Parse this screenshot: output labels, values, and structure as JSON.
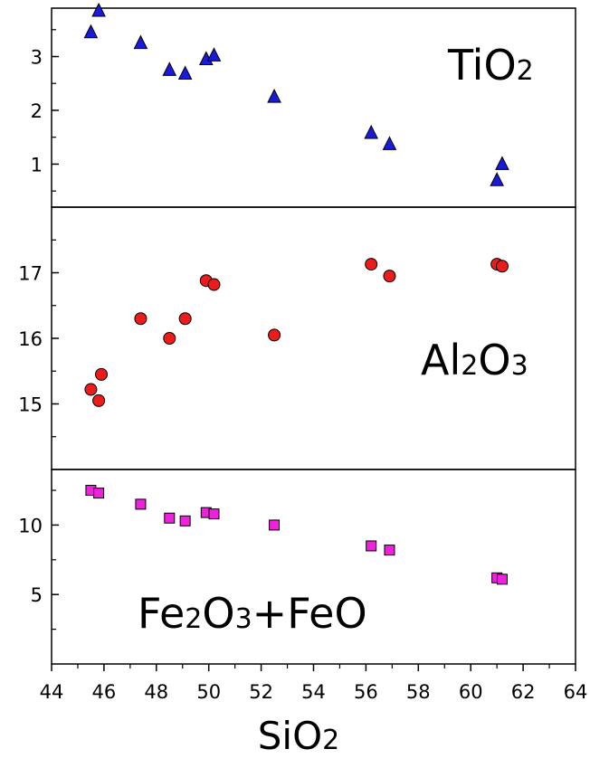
{
  "chart_data": {
    "type": "scatter",
    "x_axis": {
      "label": "SiO",
      "label_subscript": "2",
      "range": [
        44,
        64
      ],
      "ticks": [
        44,
        46,
        48,
        50,
        52,
        54,
        56,
        58,
        60,
        62,
        64
      ],
      "tick_labels": [
        "44",
        "46",
        "48",
        "50",
        "52",
        "54",
        "56",
        "58",
        "60",
        "62",
        "64"
      ]
    },
    "grid": false,
    "panels": [
      {
        "id": "tio2",
        "label_parts": [
          {
            "text": "TiO",
            "sub": false
          },
          {
            "text": "2",
            "sub": true
          }
        ],
        "label_position": "top-right",
        "marker": "triangle",
        "color": "#1a1adc",
        "ylim": [
          0.2,
          3.9
        ],
        "yticks": [
          1,
          2,
          3
        ],
        "ytick_labels": [
          "1",
          "2",
          "3"
        ],
        "minor_yticks": [
          0.5,
          1.5,
          2.5,
          3.5
        ],
        "points": [
          {
            "x": 45.5,
            "y": 3.45
          },
          {
            "x": 45.8,
            "y": 3.85
          },
          {
            "x": 47.4,
            "y": 3.25
          },
          {
            "x": 48.5,
            "y": 2.75
          },
          {
            "x": 49.1,
            "y": 2.68
          },
          {
            "x": 49.9,
            "y": 2.95
          },
          {
            "x": 50.2,
            "y": 3.02
          },
          {
            "x": 52.5,
            "y": 2.25
          },
          {
            "x": 56.2,
            "y": 1.58
          },
          {
            "x": 56.9,
            "y": 1.37
          },
          {
            "x": 61.0,
            "y": 0.7
          },
          {
            "x": 61.2,
            "y": 1.0
          }
        ]
      },
      {
        "id": "al2o3",
        "label_parts": [
          {
            "text": "Al",
            "sub": false
          },
          {
            "text": "2",
            "sub": true
          },
          {
            "text": "O",
            "sub": false
          },
          {
            "text": "3",
            "sub": true
          }
        ],
        "label_position": "middle-right",
        "marker": "circle",
        "color": "#ee1b1b",
        "ylim": [
          14.0,
          18.0
        ],
        "yticks": [
          15,
          16,
          17
        ],
        "ytick_labels": [
          "15",
          "16",
          "17"
        ],
        "minor_yticks": [
          14.5,
          15.5,
          16.5,
          17.5
        ],
        "points": [
          {
            "x": 45.5,
            "y": 15.22
          },
          {
            "x": 45.8,
            "y": 15.05
          },
          {
            "x": 45.9,
            "y": 15.45
          },
          {
            "x": 47.4,
            "y": 16.3
          },
          {
            "x": 48.5,
            "y": 16.0
          },
          {
            "x": 49.1,
            "y": 16.3
          },
          {
            "x": 49.9,
            "y": 16.88
          },
          {
            "x": 50.2,
            "y": 16.82
          },
          {
            "x": 52.5,
            "y": 16.05
          },
          {
            "x": 56.2,
            "y": 17.13
          },
          {
            "x": 56.9,
            "y": 16.95
          },
          {
            "x": 61.0,
            "y": 17.13
          },
          {
            "x": 61.2,
            "y": 17.1
          }
        ]
      },
      {
        "id": "feo",
        "label_parts": [
          {
            "text": "Fe",
            "sub": false
          },
          {
            "text": "2",
            "sub": true
          },
          {
            "text": "O",
            "sub": false
          },
          {
            "text": "3",
            "sub": true
          },
          {
            "text": "+FeO",
            "sub": false
          }
        ],
        "label_position": "bottom-left",
        "marker": "square",
        "color": "#ee22dd",
        "ylim": [
          0,
          14
        ],
        "yticks": [
          5,
          10
        ],
        "ytick_labels": [
          "5",
          "10"
        ],
        "minor_yticks": [
          2.5,
          7.5,
          12.5
        ],
        "points": [
          {
            "x": 45.5,
            "y": 12.5
          },
          {
            "x": 45.8,
            "y": 12.3
          },
          {
            "x": 47.4,
            "y": 11.5
          },
          {
            "x": 48.5,
            "y": 10.5
          },
          {
            "x": 49.1,
            "y": 10.3
          },
          {
            "x": 49.9,
            "y": 10.9
          },
          {
            "x": 50.2,
            "y": 10.8
          },
          {
            "x": 52.5,
            "y": 10.0
          },
          {
            "x": 56.2,
            "y": 8.5
          },
          {
            "x": 56.9,
            "y": 8.2
          },
          {
            "x": 61.0,
            "y": 6.2
          },
          {
            "x": 61.2,
            "y": 6.1
          }
        ]
      }
    ]
  }
}
